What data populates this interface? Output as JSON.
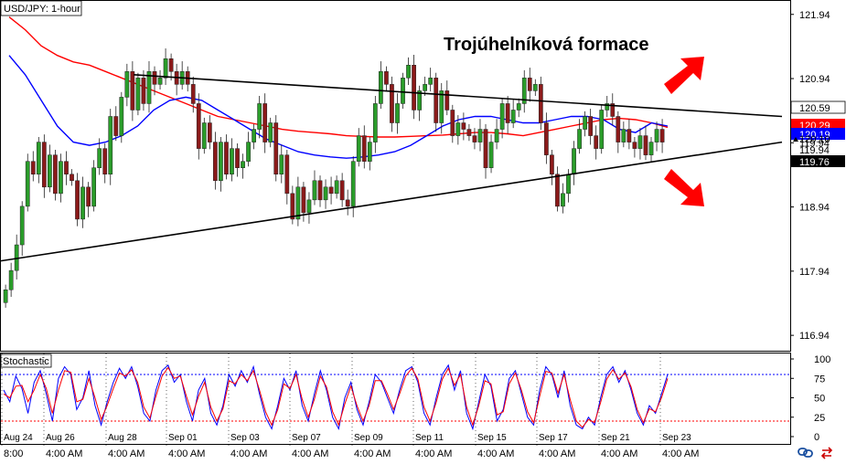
{
  "chart_data": [
    {
      "type": "candlestick",
      "title": "USD/JPY: 1-hour",
      "annotation": "Trojúhelníková formace",
      "y_axis": {
        "position": "right",
        "ylim": [
          116.7,
          122.15
        ],
        "ticks": [
          121.94,
          120.94,
          119.94,
          118.94,
          117.94,
          116.94
        ]
      },
      "price_labels": [
        {
          "text": "120.59",
          "value": 120.59,
          "style": "outline",
          "color": "#ffffff"
        },
        {
          "text": "120.29",
          "value": 120.29,
          "style": "fill",
          "color": "#ff0000"
        },
        {
          "text": "120.19",
          "value": 120.19,
          "style": "fill",
          "color": "#0000ff"
        },
        {
          "text": "120.10",
          "value": 120.1,
          "style": "marker",
          "color": "#ffffff"
        },
        {
          "text": "119.94",
          "value": 119.94,
          "style": "tick",
          "color": "#ffffff"
        },
        {
          "text": "119.76",
          "value": 119.76,
          "style": "fill",
          "color": "#000000"
        }
      ],
      "x_axis": {
        "date_labels": [
          "Aug 24",
          "Aug 26",
          "Aug 28",
          "Sep 01",
          "Sep 03",
          "Sep 07",
          "Sep 09",
          "Sep 11",
          "Sep 15",
          "Sep 17",
          "Sep 21",
          "Sep 23"
        ],
        "time_labels": [
          "8:00",
          "4:00 AM",
          "4:00 AM",
          "4:00 AM",
          "4:00 AM",
          "4:00 AM",
          "4:00 AM",
          "4:00 AM",
          "4:00 AM",
          "4:00 AM",
          "4:00 AM",
          "4:00 AM"
        ]
      },
      "closes": [
        117.65,
        117.95,
        118.35,
        118.95,
        119.65,
        119.45,
        119.95,
        119.25,
        119.75,
        119.15,
        119.65,
        119.45,
        119.35,
        118.75,
        119.25,
        118.95,
        119.55,
        119.85,
        119.45,
        120.35,
        120.05,
        120.65,
        121.05,
        120.45,
        120.95,
        120.55,
        121.05,
        120.85,
        120.95,
        121.25,
        121.05,
        120.85,
        121.05,
        120.85,
        120.55,
        119.85,
        120.25,
        119.95,
        119.35,
        119.95,
        119.45,
        119.85,
        119.55,
        119.65,
        119.95,
        120.15,
        120.55,
        119.95,
        120.25,
        119.45,
        119.75,
        119.15,
        118.75,
        119.25,
        118.85,
        119.05,
        119.35,
        119.05,
        119.25,
        119.15,
        119.35,
        119.05,
        118.95,
        119.65,
        120.05,
        119.65,
        119.95,
        120.55,
        121.05,
        120.85,
        120.25,
        120.55,
        120.95,
        121.15,
        120.45,
        120.75,
        120.85,
        120.95,
        120.25,
        120.75,
        120.45,
        120.05,
        120.25,
        120.15,
        120.05,
        119.95,
        120.15,
        119.55,
        119.95,
        120.15,
        120.55,
        120.25,
        120.45,
        120.55,
        120.95,
        120.75,
        120.85,
        120.25,
        119.75,
        119.45,
        118.95,
        119.15,
        119.45,
        119.85,
        120.15,
        120.35,
        120.05,
        119.85,
        120.45,
        120.55,
        120.35,
        119.95,
        120.15,
        119.95,
        119.85,
        120.05,
        119.75,
        119.95,
        120.15,
        119.95
      ],
      "series": [
        {
          "name": "MA-red",
          "color": "#ff0000",
          "values": [
            121.9,
            121.7,
            121.45,
            121.3,
            121.2,
            121.15,
            121.05,
            120.95,
            120.85,
            120.75,
            120.65,
            120.55,
            120.45,
            120.35,
            120.3,
            120.25,
            120.2,
            120.15,
            120.12,
            120.1,
            120.08,
            120.05,
            120.04,
            120.03,
            120.03,
            120.04,
            120.05,
            120.06,
            120.08,
            120.1,
            120.1,
            120.08,
            120.05,
            120.1,
            120.15,
            120.2,
            120.25,
            120.3,
            120.32,
            120.3,
            120.25,
            120.18
          ]
        },
        {
          "name": "MA-blue",
          "color": "#0000ff",
          "values": [
            121.3,
            121.0,
            120.6,
            120.2,
            119.95,
            119.9,
            119.95,
            120.05,
            120.2,
            120.45,
            120.6,
            120.65,
            120.6,
            120.45,
            120.3,
            120.15,
            120.0,
            119.9,
            119.8,
            119.75,
            119.72,
            119.7,
            119.72,
            119.75,
            119.8,
            119.9,
            120.05,
            120.2,
            120.3,
            120.35,
            120.35,
            120.3,
            120.25,
            120.25,
            120.3,
            120.35,
            120.35,
            120.3,
            120.15,
            120.1,
            120.25,
            120.2
          ]
        }
      ],
      "trendlines": [
        {
          "name": "upper-trendline",
          "from": [
            0.17,
            121.0
          ],
          "to": [
            1.0,
            120.35
          ]
        },
        {
          "name": "lower-trendline",
          "from": [
            0.0,
            118.1
          ],
          "to": [
            1.0,
            119.95
          ]
        }
      ],
      "arrows": [
        {
          "name": "arrow-up",
          "color": "#ff0000",
          "direction": "up-right"
        },
        {
          "name": "arrow-down",
          "color": "#ff0000",
          "direction": "down-right"
        }
      ]
    },
    {
      "type": "line",
      "title": "Stochastic",
      "ylim": [
        0,
        100
      ],
      "ticks": [
        100,
        75,
        50,
        25,
        0
      ],
      "levels": [
        {
          "value": 80,
          "color": "#0000ff"
        },
        {
          "value": 20,
          "color": "#ff0000"
        }
      ],
      "series": [
        {
          "name": "%K",
          "color": "#0000ff",
          "values": [
            60,
            45,
            78,
            62,
            30,
            70,
            85,
            55,
            20,
            75,
            90,
            80,
            35,
            50,
            85,
            40,
            15,
            45,
            70,
            88,
            75,
            90,
            65,
            30,
            20,
            60,
            85,
            92,
            70,
            80,
            45,
            20,
            60,
            75,
            30,
            15,
            40,
            80,
            65,
            85,
            70,
            90,
            55,
            25,
            10,
            40,
            75,
            60,
            85,
            40,
            20,
            55,
            85,
            60,
            25,
            10,
            50,
            70,
            35,
            15,
            45,
            80,
            70,
            50,
            30,
            60,
            85,
            90,
            70,
            30,
            15,
            50,
            80,
            92,
            60,
            85,
            30,
            10,
            45,
            80,
            65,
            20,
            35,
            75,
            85,
            55,
            25,
            15,
            60,
            90,
            80,
            50,
            85,
            40,
            15,
            10,
            25,
            15,
            50,
            80,
            90,
            70,
            85,
            60,
            30,
            15,
            40,
            30,
            55,
            80
          ]
        },
        {
          "name": "%D",
          "color": "#ff0000",
          "values": [
            55,
            50,
            65,
            66,
            45,
            60,
            80,
            62,
            30,
            60,
            85,
            83,
            45,
            48,
            75,
            50,
            22,
            40,
            62,
            82,
            78,
            86,
            70,
            38,
            24,
            52,
            78,
            89,
            75,
            78,
            52,
            28,
            52,
            70,
            38,
            20,
            36,
            72,
            68,
            80,
            72,
            85,
            60,
            32,
            15,
            35,
            68,
            62,
            80,
            48,
            25,
            48,
            78,
            64,
            32,
            15,
            42,
            65,
            40,
            20,
            40,
            72,
            72,
            55,
            35,
            55,
            78,
            88,
            74,
            38,
            20,
            44,
            74,
            88,
            66,
            80,
            38,
            15,
            40,
            72,
            68,
            28,
            32,
            68,
            82,
            60,
            32,
            18,
            52,
            84,
            82,
            56,
            80,
            48,
            20,
            12,
            22,
            18,
            44,
            74,
            86,
            74,
            82,
            64,
            35,
            18,
            36,
            32,
            50,
            75
          ]
        }
      ]
    }
  ]
}
